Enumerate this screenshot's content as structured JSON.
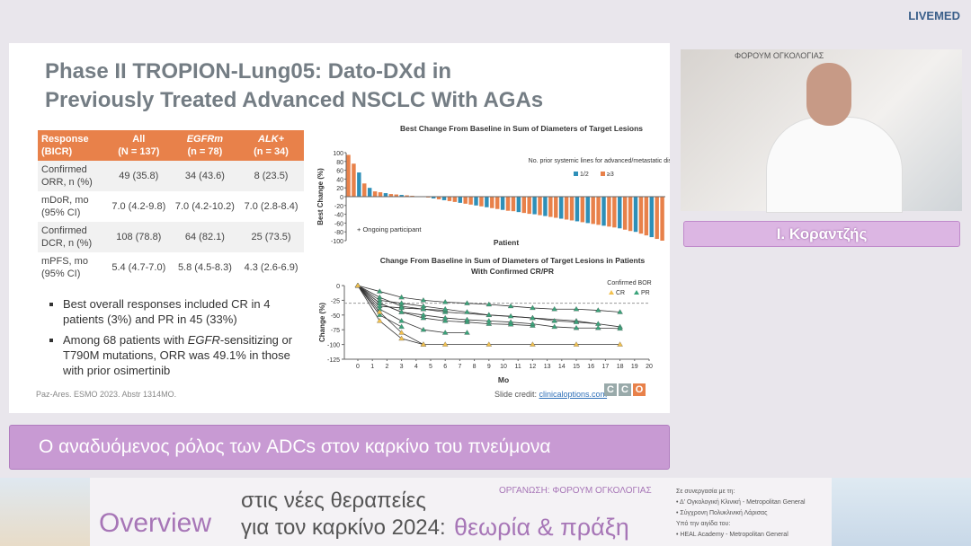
{
  "header": {
    "brand": "LIVEMED"
  },
  "slide": {
    "title": [
      "Phase II TROPION-Lung05: Dato-DXd in",
      "Previously Treated Advanced NSCLC With AGAs"
    ],
    "table": {
      "header": [
        [
          "Response",
          "(BICR)"
        ],
        [
          "All",
          "(N = 137)"
        ],
        [
          "EGFRm",
          "(n = 78)"
        ],
        [
          "ALK+",
          "(n = 34)"
        ]
      ],
      "rows": [
        [
          "Confirmed ORR, n (%)",
          "49 (35.8)",
          "34 (43.6)",
          "8 (23.5)"
        ],
        [
          "mDoR, mo (95% CI)",
          "7.0 (4.2-9.8)",
          "7.0 (4.2-10.2)",
          "7.0 (2.8-8.4)"
        ],
        [
          "Confirmed DCR, n (%)",
          "108 (78.8)",
          "64 (82.1)",
          "25 (73.5)"
        ],
        [
          "mPFS, mo (95% CI)",
          "5.4 (4.7-7.0)",
          "5.8 (4.5-8.3)",
          "4.3 (2.6-6.9)"
        ]
      ]
    },
    "bullets": [
      [
        "Best overall responses included CR in 4 patients (3%) and PR in 45 (33%)"
      ],
      [
        "Among 68 patients with ",
        "EGFR",
        "-sensitizing or T790M mutations, ORR was 49.1% in those with prior osimertinib"
      ]
    ],
    "citation": "Paz-Ares. ESMO 2023. Abstr 1314MO.",
    "credit": "Slide credit: ",
    "credit_link": "clinicaloptions.com",
    "logo": [
      "C",
      "C",
      "O"
    ]
  },
  "chart_data": [
    {
      "type": "bar",
      "title": "Best Change From Baseline in Sum of Diameters of Target Lesions",
      "x_label": "Patient",
      "y_label": "Best Change (%)",
      "legend_title": "No. prior systemic lines for advanced/metastatic disease",
      "legend": [
        {
          "name": "1/2",
          "color": "#2e8fb8"
        },
        {
          "name": "≥3",
          "color": "#e8814a"
        }
      ],
      "footnote": "+ Ongoing participant",
      "values": [
        95,
        75,
        55,
        30,
        20,
        12,
        10,
        8,
        6,
        5,
        4,
        3,
        2,
        1,
        0,
        -2,
        -4,
        -6,
        -8,
        -10,
        -12,
        -14,
        -16,
        -18,
        -20,
        -22,
        -24,
        -26,
        -28,
        -30,
        -32,
        -33,
        -35,
        -37,
        -39,
        -40,
        -42,
        -44,
        -46,
        -48,
        -50,
        -52,
        -54,
        -56,
        -58,
        -60,
        -62,
        -64,
        -66,
        -68,
        -70,
        -72,
        -75,
        -78,
        -80,
        -84,
        -88,
        -92,
        -96,
        -100
      ],
      "colors": [
        "#e8814a",
        "#e8814a",
        "#2e8fb8",
        "#e8814a",
        "#2e8fb8",
        "#e8814a",
        "#e8814a",
        "#2e8fb8",
        "#e8814a",
        "#e8814a",
        "#2e8fb8",
        "#e8814a",
        "#e8814a",
        "#2e8fb8",
        "#e8814a",
        "#e8814a",
        "#2e8fb8",
        "#e8814a",
        "#2e8fb8",
        "#e8814a",
        "#e8814a",
        "#2e8fb8",
        "#e8814a",
        "#e8814a",
        "#2e8fb8",
        "#e8814a",
        "#2e8fb8",
        "#e8814a",
        "#e8814a",
        "#2e8fb8",
        "#e8814a",
        "#e8814a",
        "#2e8fb8",
        "#e8814a",
        "#e8814a",
        "#2e8fb8",
        "#e8814a",
        "#2e8fb8",
        "#e8814a",
        "#e8814a",
        "#2e8fb8",
        "#e8814a",
        "#e8814a",
        "#2e8fb8",
        "#e8814a",
        "#2e8fb8",
        "#e8814a",
        "#e8814a",
        "#2e8fb8",
        "#e8814a",
        "#e8814a",
        "#2e8fb8",
        "#e8814a",
        "#e8814a",
        "#2e8fb8",
        "#e8814a",
        "#e8814a",
        "#2e8fb8",
        "#e8814a",
        "#e8814a"
      ],
      "ylim": [
        -100,
        100
      ],
      "yticks": [
        -100,
        -80,
        -60,
        -40,
        -20,
        0,
        20,
        40,
        60,
        80,
        100
      ]
    },
    {
      "type": "line",
      "title": [
        "Change From Baseline in Sum of Diameters of Target Lesions in Patients",
        "With Confirmed CR/PR"
      ],
      "x_label": "Mo",
      "y_label": "Change (%)",
      "legend_title": "Confirmed BOR",
      "legend": [
        {
          "name": "CR",
          "color": "#f2c14e"
        },
        {
          "name": "PR",
          "color": "#3aa37a"
        }
      ],
      "series": [
        {
          "color": "#3aa37a",
          "x": [
            0,
            1.5,
            3,
            4.5,
            6,
            7.5,
            9,
            10.5,
            12
          ],
          "values": [
            0,
            -30,
            -45,
            -55,
            -60,
            -62,
            -65,
            -66,
            -68
          ]
        },
        {
          "color": "#3aa37a",
          "x": [
            0,
            1.5,
            3,
            4.5,
            6,
            7.5
          ],
          "values": [
            0,
            -40,
            -60,
            -75,
            -80,
            -80
          ]
        },
        {
          "color": "#3aa37a",
          "x": [
            0,
            1.5,
            3,
            4.5,
            6,
            9,
            12,
            15,
            18
          ],
          "values": [
            0,
            -20,
            -35,
            -40,
            -45,
            -50,
            -55,
            -60,
            -70
          ]
        },
        {
          "color": "#f2c14e",
          "x": [
            0,
            1.5,
            3,
            4.5,
            6,
            9,
            12,
            15,
            18
          ],
          "values": [
            0,
            -60,
            -90,
            -100,
            -100,
            -100,
            -100,
            -100,
            -100
          ]
        },
        {
          "color": "#3aa37a",
          "x": [
            0,
            1.5,
            3,
            4.5,
            6
          ],
          "values": [
            0,
            -35,
            -38,
            -40,
            -42
          ]
        },
        {
          "color": "#3aa37a",
          "x": [
            0,
            1.5,
            3,
            4.5,
            6,
            7.5,
            9,
            10.5,
            12,
            13.5,
            15,
            16.5
          ],
          "values": [
            0,
            -25,
            -30,
            -35,
            -40,
            -45,
            -50,
            -52,
            -55,
            -60,
            -62,
            -65
          ]
        },
        {
          "color": "#3aa37a",
          "x": [
            0,
            1.5,
            3
          ],
          "values": [
            0,
            -50,
            -70
          ]
        },
        {
          "color": "#3aa37a",
          "x": [
            0,
            1.5,
            3,
            4.5,
            6,
            7.5,
            9,
            10.5,
            12,
            13.5,
            15,
            16.5,
            18
          ],
          "values": [
            0,
            -30,
            -45,
            -50,
            -55,
            -58,
            -60,
            -62,
            -65,
            -70,
            -72,
            -72,
            -73
          ]
        },
        {
          "color": "#3aa37a",
          "x": [
            0,
            1.5,
            3,
            4.5,
            6,
            7.5,
            9,
            10.5,
            12,
            13.5,
            15,
            16.5,
            18
          ],
          "values": [
            0,
            -10,
            -20,
            -25,
            -28,
            -30,
            -32,
            -35,
            -38,
            -40,
            -40,
            -42,
            -45
          ]
        },
        {
          "color": "#f2c14e",
          "x": [
            0,
            1.5,
            3,
            4.5
          ],
          "values": [
            0,
            -45,
            -80,
            -100
          ]
        }
      ],
      "xlim": [
        0,
        20
      ],
      "xticks": [
        0,
        1,
        2,
        3,
        4,
        5,
        6,
        7,
        8,
        9,
        10,
        11,
        12,
        13,
        14,
        15,
        16,
        17,
        18,
        19,
        20
      ],
      "ylim": [
        -125,
        0
      ],
      "yticks": [
        -125,
        -100,
        -75,
        -50,
        -25,
        0
      ]
    }
  ],
  "video": {
    "banner": "ΦΟΡΟΥΜ ΟΓΚΟΛΟΓΙΑΣ"
  },
  "speaker": {
    "name": "Ι. Κοραντζής"
  },
  "caption": "Ο αναδυόμενος ρόλος των ADCs στον καρκίνο του πνεύμονα",
  "footer": {
    "overview": "Overview",
    "line1": "στις νέες θεραπείες",
    "line2": "για τον καρκίνο 2024:",
    "highlight": "θεωρία & πράξη",
    "organizer": "ΟΡΓΑΝΩΣΗ: ΦΟΡΟΥΜ ΟΓΚΟΛΟΓΙΑΣ",
    "partners": [
      "Σε συνεργασία με τη:",
      "• Δ' Ογκολογική Κλινική - Metropolitan General",
      "• Σύγχρονη Πολυκλινική Λάρισας",
      "Υπό την αιγίδα του:",
      "• HEAL Academy - Metropolitan General"
    ]
  }
}
